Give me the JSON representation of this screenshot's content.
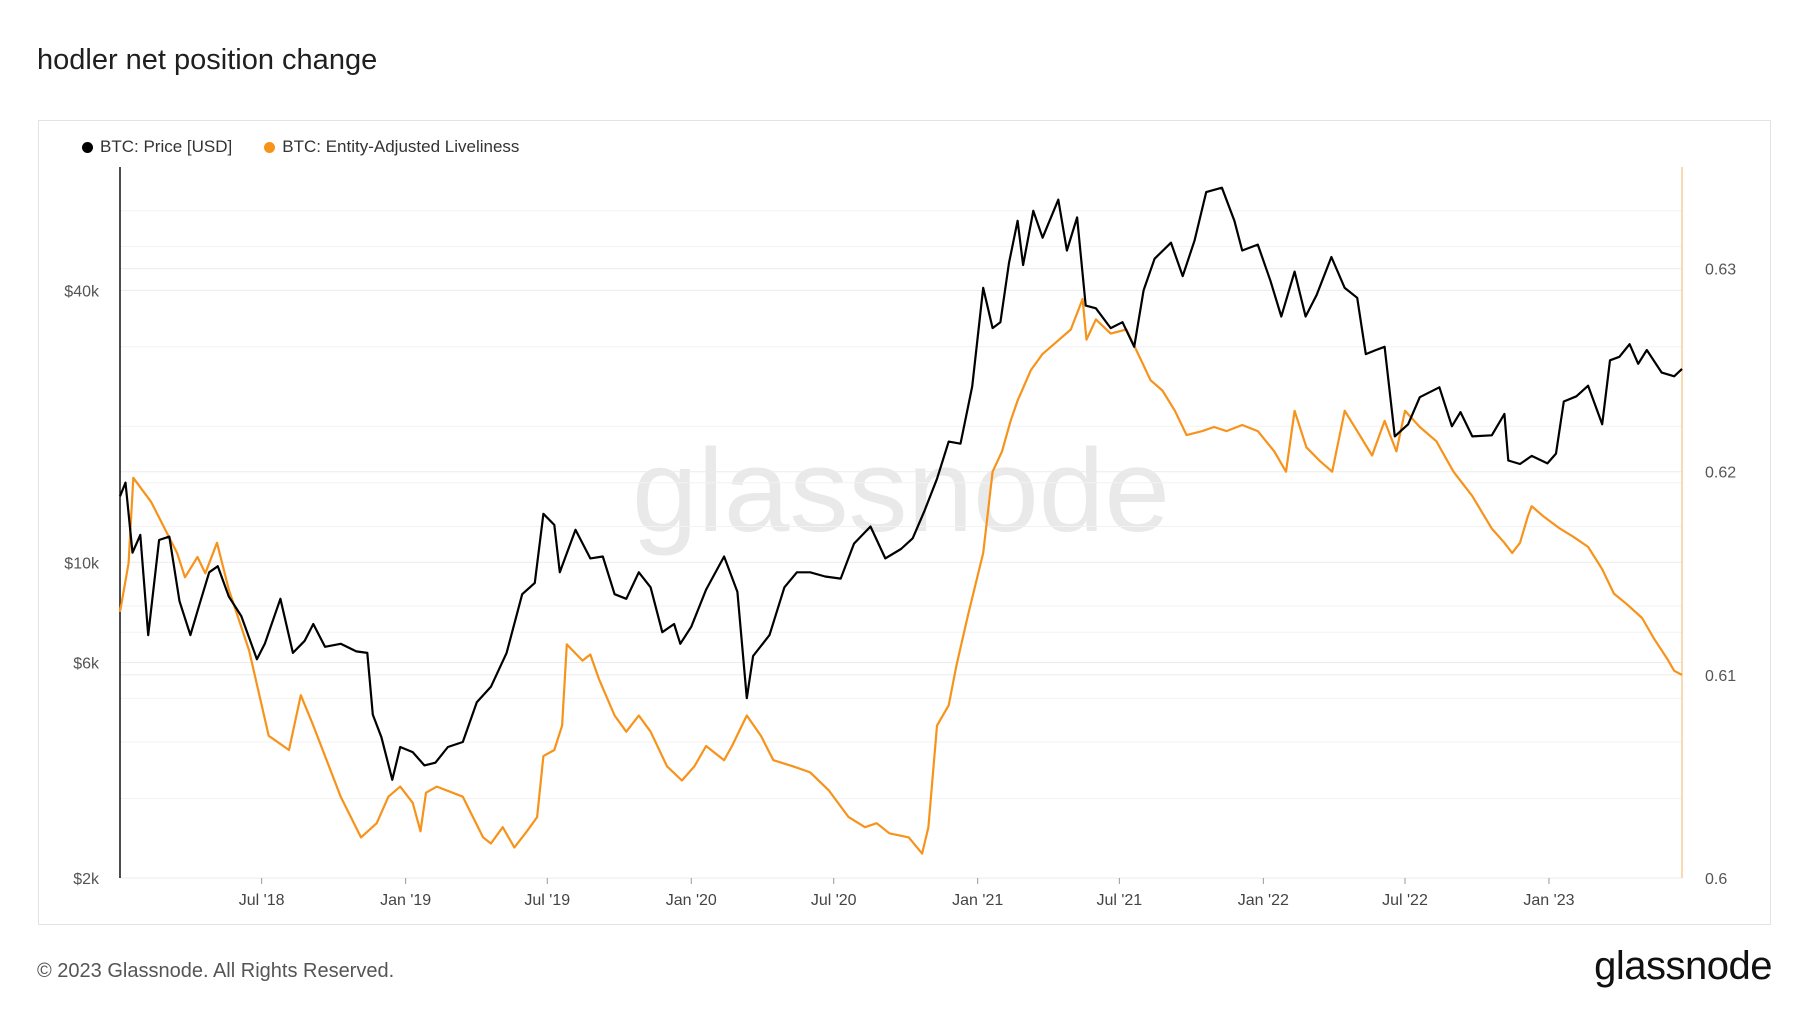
{
  "page": {
    "title": "hodler net position change",
    "copyright": "© 2023 Glassnode. All Rights Reserved.",
    "logo_text": "glassnode",
    "watermark_text": "glassnode"
  },
  "colors": {
    "price": "#000000",
    "liveliness": "#f7931a",
    "grid": "#efefef",
    "axis_text": "#555555"
  },
  "chart_data": {
    "type": "line",
    "x_ticks": [
      "Jul '18",
      "Jan '19",
      "Jul '19",
      "Jan '20",
      "Jul '20",
      "Jan '21",
      "Jul '21",
      "Jan '22",
      "Jul '22",
      "Jan '23"
    ],
    "x_tick_dates": [
      "2018-07-01",
      "2019-01-01",
      "2019-07-01",
      "2020-01-01",
      "2020-07-01",
      "2021-01-01",
      "2021-07-01",
      "2022-01-01",
      "2022-07-01",
      "2023-01-01"
    ],
    "x_range": [
      "2018-01-01",
      "2023-06-20"
    ],
    "left_axis": {
      "scale": "log",
      "ticks": [
        "$2k",
        "$6k",
        "$10k",
        "$40k"
      ],
      "tick_values": [
        2000,
        6000,
        10000,
        40000
      ],
      "ylim": [
        2000,
        75000
      ]
    },
    "right_axis": {
      "scale": "linear",
      "ticks": [
        "0.6",
        "0.61",
        "0.62",
        "0.63"
      ],
      "tick_values": [
        0.6,
        0.61,
        0.62,
        0.63
      ],
      "ylim": [
        0.6,
        0.635
      ]
    },
    "grid": true,
    "legend_position": "top-left",
    "series": [
      {
        "name": "BTC: Price [USD]",
        "axis": "left",
        "points": [
          [
            "2018-01-01",
            14000
          ],
          [
            "2018-01-08",
            15000
          ],
          [
            "2018-01-17",
            10500
          ],
          [
            "2018-01-27",
            11500
          ],
          [
            "2018-02-06",
            6900
          ],
          [
            "2018-02-20",
            11200
          ],
          [
            "2018-03-05",
            11400
          ],
          [
            "2018-03-18",
            8200
          ],
          [
            "2018-04-01",
            6900
          ],
          [
            "2018-04-12",
            8000
          ],
          [
            "2018-04-25",
            9500
          ],
          [
            "2018-05-06",
            9800
          ],
          [
            "2018-05-20",
            8400
          ],
          [
            "2018-06-05",
            7600
          ],
          [
            "2018-06-25",
            6100
          ],
          [
            "2018-07-05",
            6600
          ],
          [
            "2018-07-25",
            8300
          ],
          [
            "2018-08-10",
            6300
          ],
          [
            "2018-08-25",
            6700
          ],
          [
            "2018-09-05",
            7300
          ],
          [
            "2018-09-20",
            6500
          ],
          [
            "2018-10-10",
            6600
          ],
          [
            "2018-10-30",
            6350
          ],
          [
            "2018-11-13",
            6300
          ],
          [
            "2018-11-20",
            4600
          ],
          [
            "2018-12-01",
            4100
          ],
          [
            "2018-12-15",
            3300
          ],
          [
            "2018-12-25",
            3900
          ],
          [
            "2019-01-10",
            3800
          ],
          [
            "2019-01-25",
            3550
          ],
          [
            "2019-02-08",
            3600
          ],
          [
            "2019-02-24",
            3900
          ],
          [
            "2019-03-15",
            4000
          ],
          [
            "2019-04-02",
            4900
          ],
          [
            "2019-04-20",
            5300
          ],
          [
            "2019-05-10",
            6300
          ],
          [
            "2019-05-30",
            8500
          ],
          [
            "2019-06-15",
            9000
          ],
          [
            "2019-06-26",
            12800
          ],
          [
            "2019-07-10",
            12100
          ],
          [
            "2019-07-17",
            9500
          ],
          [
            "2019-08-06",
            11800
          ],
          [
            "2019-08-25",
            10200
          ],
          [
            "2019-09-10",
            10300
          ],
          [
            "2019-09-25",
            8500
          ],
          [
            "2019-10-10",
            8300
          ],
          [
            "2019-10-26",
            9500
          ],
          [
            "2019-11-10",
            8800
          ],
          [
            "2019-11-25",
            7000
          ],
          [
            "2019-12-10",
            7300
          ],
          [
            "2019-12-18",
            6600
          ],
          [
            "2020-01-01",
            7200
          ],
          [
            "2020-01-20",
            8700
          ],
          [
            "2020-02-12",
            10300
          ],
          [
            "2020-02-29",
            8600
          ],
          [
            "2020-03-12",
            5000
          ],
          [
            "2020-03-20",
            6200
          ],
          [
            "2020-04-10",
            6900
          ],
          [
            "2020-04-29",
            8800
          ],
          [
            "2020-05-15",
            9500
          ],
          [
            "2020-06-01",
            9500
          ],
          [
            "2020-06-20",
            9300
          ],
          [
            "2020-07-10",
            9200
          ],
          [
            "2020-07-27",
            11000
          ],
          [
            "2020-08-17",
            12000
          ],
          [
            "2020-09-05",
            10200
          ],
          [
            "2020-09-25",
            10700
          ],
          [
            "2020-10-10",
            11300
          ],
          [
            "2020-10-25",
            13000
          ],
          [
            "2020-11-10",
            15300
          ],
          [
            "2020-11-25",
            18500
          ],
          [
            "2020-12-10",
            18300
          ],
          [
            "2020-12-25",
            24500
          ],
          [
            "2021-01-08",
            40500
          ],
          [
            "2021-01-20",
            33000
          ],
          [
            "2021-01-30",
            34000
          ],
          [
            "2021-02-10",
            46000
          ],
          [
            "2021-02-21",
            57000
          ],
          [
            "2021-02-28",
            45500
          ],
          [
            "2021-03-13",
            60000
          ],
          [
            "2021-03-25",
            52300
          ],
          [
            "2021-04-14",
            63500
          ],
          [
            "2021-04-25",
            49000
          ],
          [
            "2021-05-08",
            58000
          ],
          [
            "2021-05-19",
            37000
          ],
          [
            "2021-06-01",
            36500
          ],
          [
            "2021-06-20",
            33000
          ],
          [
            "2021-07-05",
            34000
          ],
          [
            "2021-07-20",
            30000
          ],
          [
            "2021-08-01",
            40000
          ],
          [
            "2021-08-15",
            47000
          ],
          [
            "2021-09-05",
            51000
          ],
          [
            "2021-09-20",
            43000
          ],
          [
            "2021-10-05",
            51500
          ],
          [
            "2021-10-20",
            66000
          ],
          [
            "2021-11-09",
            67500
          ],
          [
            "2021-11-25",
            57000
          ],
          [
            "2021-12-05",
            49000
          ],
          [
            "2021-12-25",
            50500
          ],
          [
            "2022-01-10",
            42000
          ],
          [
            "2022-01-24",
            35000
          ],
          [
            "2022-02-10",
            44000
          ],
          [
            "2022-02-24",
            35000
          ],
          [
            "2022-03-10",
            39000
          ],
          [
            "2022-03-29",
            47400
          ],
          [
            "2022-04-15",
            40500
          ],
          [
            "2022-05-01",
            38500
          ],
          [
            "2022-05-12",
            28900
          ],
          [
            "2022-05-25",
            29500
          ],
          [
            "2022-06-05",
            30000
          ],
          [
            "2022-06-18",
            19000
          ],
          [
            "2022-07-05",
            20200
          ],
          [
            "2022-07-20",
            23200
          ],
          [
            "2022-08-14",
            24400
          ],
          [
            "2022-08-30",
            20000
          ],
          [
            "2022-09-10",
            21500
          ],
          [
            "2022-09-25",
            19000
          ],
          [
            "2022-10-20",
            19100
          ],
          [
            "2022-11-05",
            21300
          ],
          [
            "2022-11-10",
            16800
          ],
          [
            "2022-11-25",
            16500
          ],
          [
            "2022-12-10",
            17200
          ],
          [
            "2022-12-30",
            16550
          ],
          [
            "2023-01-10",
            17400
          ],
          [
            "2023-01-20",
            22700
          ],
          [
            "2023-02-05",
            23300
          ],
          [
            "2023-02-20",
            24600
          ],
          [
            "2023-03-10",
            20200
          ],
          [
            "2023-03-20",
            28000
          ],
          [
            "2023-04-01",
            28500
          ],
          [
            "2023-04-14",
            30400
          ],
          [
            "2023-04-25",
            27500
          ],
          [
            "2023-05-06",
            29500
          ],
          [
            "2023-05-25",
            26300
          ],
          [
            "2023-06-10",
            25800
          ],
          [
            "2023-06-20",
            26800
          ]
        ]
      },
      {
        "name": "BTC: Entity-Adjusted Liveliness",
        "axis": "right",
        "points": [
          [
            "2018-01-01",
            0.6131
          ],
          [
            "2018-01-12",
            0.6155
          ],
          [
            "2018-01-18",
            0.6197
          ],
          [
            "2018-02-10",
            0.6185
          ],
          [
            "2018-03-15",
            0.616
          ],
          [
            "2018-03-25",
            0.6148
          ],
          [
            "2018-04-10",
            0.6158
          ],
          [
            "2018-04-20",
            0.615
          ],
          [
            "2018-05-05",
            0.6165
          ],
          [
            "2018-05-20",
            0.6142
          ],
          [
            "2018-06-15",
            0.6112
          ],
          [
            "2018-07-10",
            0.607
          ],
          [
            "2018-08-05",
            0.6063
          ],
          [
            "2018-08-20",
            0.609
          ],
          [
            "2018-09-05",
            0.6075
          ],
          [
            "2018-10-10",
            0.604
          ],
          [
            "2018-11-05",
            0.602
          ],
          [
            "2018-11-25",
            0.6027
          ],
          [
            "2018-12-10",
            0.604
          ],
          [
            "2018-12-25",
            0.6045
          ],
          [
            "2019-01-10",
            0.6037
          ],
          [
            "2019-01-20",
            0.6023
          ],
          [
            "2019-01-27",
            0.6042
          ],
          [
            "2019-02-10",
            0.6045
          ],
          [
            "2019-03-15",
            0.604
          ],
          [
            "2019-04-10",
            0.602
          ],
          [
            "2019-04-20",
            0.6017
          ],
          [
            "2019-05-05",
            0.6025
          ],
          [
            "2019-05-20",
            0.6015
          ],
          [
            "2019-06-05",
            0.6023
          ],
          [
            "2019-06-18",
            0.603
          ],
          [
            "2019-06-26",
            0.606
          ],
          [
            "2019-07-10",
            0.6063
          ],
          [
            "2019-07-20",
            0.6075
          ],
          [
            "2019-07-26",
            0.6115
          ],
          [
            "2019-08-15",
            0.6107
          ],
          [
            "2019-08-25",
            0.611
          ],
          [
            "2019-09-05",
            0.6098
          ],
          [
            "2019-09-25",
            0.608
          ],
          [
            "2019-10-10",
            0.6072
          ],
          [
            "2019-10-26",
            0.608
          ],
          [
            "2019-11-10",
            0.6072
          ],
          [
            "2019-12-01",
            0.6055
          ],
          [
            "2019-12-20",
            0.6048
          ],
          [
            "2020-01-05",
            0.6055
          ],
          [
            "2020-01-20",
            0.6065
          ],
          [
            "2020-02-12",
            0.6058
          ],
          [
            "2020-02-22",
            0.6065
          ],
          [
            "2020-03-12",
            0.608
          ],
          [
            "2020-03-30",
            0.607
          ],
          [
            "2020-04-15",
            0.6058
          ],
          [
            "2020-05-10",
            0.6055
          ],
          [
            "2020-06-01",
            0.6052
          ],
          [
            "2020-06-25",
            0.6043
          ],
          [
            "2020-07-20",
            0.603
          ],
          [
            "2020-08-10",
            0.6025
          ],
          [
            "2020-08-25",
            0.6027
          ],
          [
            "2020-09-10",
            0.6022
          ],
          [
            "2020-10-05",
            0.602
          ],
          [
            "2020-10-22",
            0.6012
          ],
          [
            "2020-10-30",
            0.6025
          ],
          [
            "2020-11-10",
            0.6075
          ],
          [
            "2020-11-25",
            0.6085
          ],
          [
            "2020-12-05",
            0.6105
          ],
          [
            "2020-12-20",
            0.613
          ],
          [
            "2021-01-08",
            0.616
          ],
          [
            "2021-01-20",
            0.62
          ],
          [
            "2021-02-01",
            0.621
          ],
          [
            "2021-02-12",
            0.6225
          ],
          [
            "2021-02-21",
            0.6235
          ],
          [
            "2021-03-10",
            0.625
          ],
          [
            "2021-03-25",
            0.6258
          ],
          [
            "2021-04-15",
            0.6265
          ],
          [
            "2021-04-30",
            0.627
          ],
          [
            "2021-05-15",
            0.6285
          ],
          [
            "2021-05-20",
            0.6265
          ],
          [
            "2021-06-01",
            0.6275
          ],
          [
            "2021-06-20",
            0.6268
          ],
          [
            "2021-07-10",
            0.627
          ],
          [
            "2021-07-25",
            0.6258
          ],
          [
            "2021-08-10",
            0.6245
          ],
          [
            "2021-08-25",
            0.624
          ],
          [
            "2021-09-10",
            0.623
          ],
          [
            "2021-09-25",
            0.6218
          ],
          [
            "2021-10-15",
            0.622
          ],
          [
            "2021-10-30",
            0.6222
          ],
          [
            "2021-11-15",
            0.622
          ],
          [
            "2021-12-05",
            0.6223
          ],
          [
            "2021-12-25",
            0.622
          ],
          [
            "2022-01-15",
            0.621
          ],
          [
            "2022-01-30",
            0.62
          ],
          [
            "2022-02-10",
            0.623
          ],
          [
            "2022-02-25",
            0.6212
          ],
          [
            "2022-03-15",
            0.6205
          ],
          [
            "2022-03-30",
            0.62
          ],
          [
            "2022-04-15",
            0.623
          ],
          [
            "2022-05-01",
            0.622
          ],
          [
            "2022-05-20",
            0.6208
          ],
          [
            "2022-06-05",
            0.6225
          ],
          [
            "2022-06-20",
            0.621
          ],
          [
            "2022-07-01",
            0.623
          ],
          [
            "2022-07-20",
            0.6222
          ],
          [
            "2022-08-10",
            0.6215
          ],
          [
            "2022-09-01",
            0.62
          ],
          [
            "2022-09-25",
            0.6188
          ],
          [
            "2022-10-20",
            0.6172
          ],
          [
            "2022-11-05",
            0.6165
          ],
          [
            "2022-11-15",
            0.616
          ],
          [
            "2022-11-25",
            0.6165
          ],
          [
            "2022-12-05",
            0.6178
          ],
          [
            "2022-12-10",
            0.6183
          ],
          [
            "2022-12-25",
            0.6178
          ],
          [
            "2023-01-15",
            0.6172
          ],
          [
            "2023-02-01",
            0.6168
          ],
          [
            "2023-02-20",
            0.6163
          ],
          [
            "2023-03-10",
            0.6152
          ],
          [
            "2023-03-25",
            0.614
          ],
          [
            "2023-04-10",
            0.6135
          ],
          [
            "2023-04-30",
            0.6128
          ],
          [
            "2023-05-15",
            0.6118
          ],
          [
            "2023-06-01",
            0.6108
          ],
          [
            "2023-06-10",
            0.6102
          ],
          [
            "2023-06-20",
            0.61
          ]
        ]
      }
    ]
  }
}
